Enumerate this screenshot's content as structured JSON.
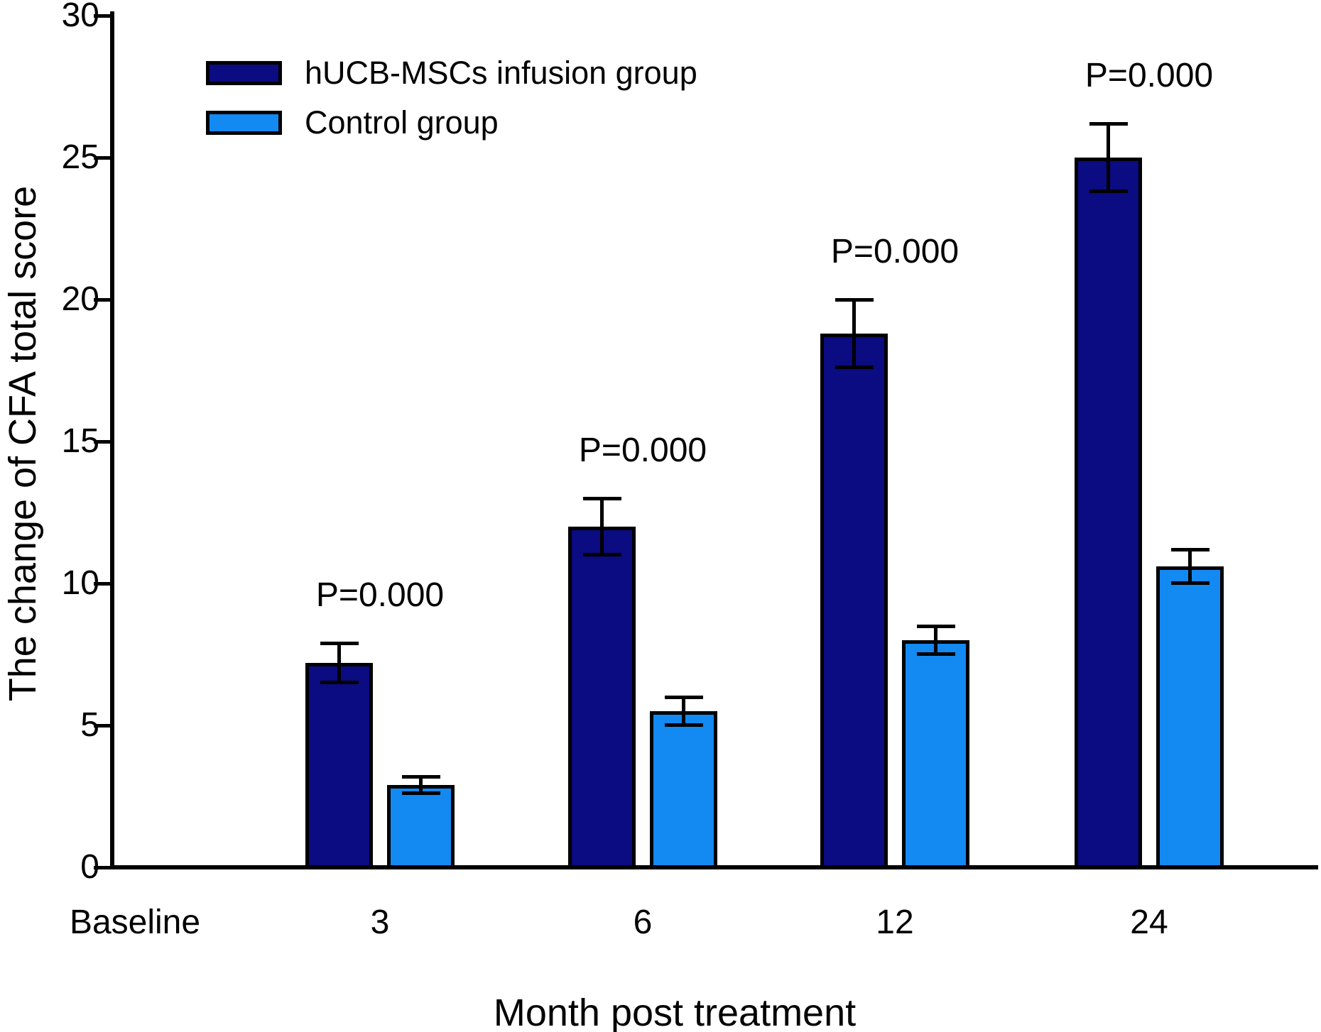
{
  "chart_data": {
    "type": "bar",
    "title": "",
    "xlabel": "Month post treatment",
    "ylabel": "The change of CFA total score",
    "categories": [
      "Baseline",
      "3",
      "6",
      "12",
      "24"
    ],
    "series": [
      {
        "name": "hUCB-MSCs infusion group",
        "color": "#0b0b82",
        "values": [
          null,
          7.2,
          12.0,
          18.8,
          25.0
        ],
        "errors": [
          null,
          0.7,
          1.0,
          1.2,
          1.2
        ]
      },
      {
        "name": "Control group",
        "color": "#1389f2",
        "values": [
          null,
          2.9,
          5.5,
          8.0,
          10.6
        ],
        "errors": [
          null,
          0.3,
          0.5,
          0.5,
          0.6
        ]
      }
    ],
    "annotations": [
      {
        "category_index": 1,
        "text": "P=0.000"
      },
      {
        "category_index": 2,
        "text": "P=0.000"
      },
      {
        "category_index": 3,
        "text": "P=0.000"
      },
      {
        "category_index": 4,
        "text": "P=0.000"
      }
    ],
    "ylim": [
      0,
      30
    ],
    "yticks": [
      0,
      5,
      10,
      15,
      20,
      25,
      30
    ],
    "grid": false,
    "legend_position": "top-left",
    "bar_outline_color": "#000000",
    "axis_color": "#000000",
    "background_color": "#ffffff"
  }
}
